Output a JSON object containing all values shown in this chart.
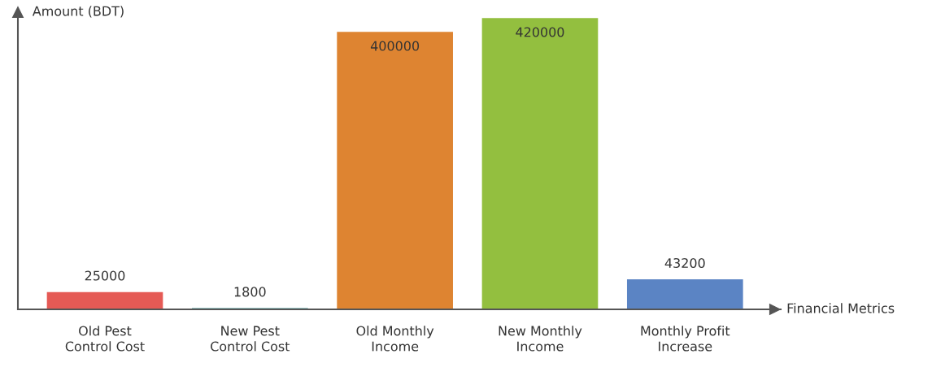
{
  "chart_data": {
    "type": "bar",
    "xlabel": "Financial Metrics",
    "ylabel": "Amount (BDT)",
    "categories": [
      "Old Pest Control Cost",
      "New Pest Control Cost",
      "Old Monthly Income",
      "New Monthly Income",
      "Monthly Profit Increase"
    ],
    "values": [
      25000,
      1800,
      400000,
      420000,
      43200
    ],
    "colors": [
      "#e55a55",
      "#2e8b8b",
      "#de8431",
      "#93bf3f",
      "#5b84c4"
    ],
    "data_labels": true,
    "grid": false,
    "legend": false
  }
}
